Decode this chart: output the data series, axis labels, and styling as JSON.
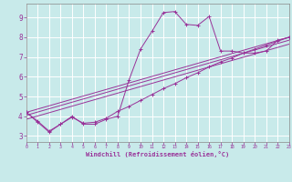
{
  "xlabel": "Windchill (Refroidissement éolien,°C)",
  "bg_color": "#c8eaea",
  "line_color": "#993399",
  "grid_color": "#b0d8d8",
  "xlim": [
    0,
    23
  ],
  "ylim": [
    2.7,
    9.7
  ],
  "xticks": [
    0,
    1,
    2,
    3,
    4,
    5,
    6,
    7,
    8,
    9,
    10,
    11,
    12,
    13,
    14,
    15,
    16,
    17,
    18,
    19,
    20,
    21,
    22,
    23
  ],
  "yticks": [
    3,
    4,
    5,
    6,
    7,
    8,
    9
  ],
  "line_main_x": [
    0,
    1,
    2,
    3,
    4,
    5,
    6,
    7,
    8,
    9,
    10,
    11,
    12,
    13,
    14,
    15,
    16,
    17,
    18,
    19,
    20,
    21,
    22,
    23
  ],
  "line_main_y": [
    4.2,
    3.7,
    3.2,
    3.6,
    4.0,
    3.6,
    3.6,
    3.85,
    4.0,
    5.85,
    7.4,
    8.3,
    9.25,
    9.3,
    8.65,
    8.6,
    9.05,
    7.3,
    7.3,
    7.2,
    7.2,
    7.3,
    7.85,
    8.0
  ],
  "line_smooth_x": [
    0,
    1,
    2,
    3,
    4,
    5,
    6,
    7,
    8,
    9,
    10,
    11,
    12,
    13,
    14,
    15,
    16,
    17,
    18,
    19,
    20,
    21,
    22,
    23
  ],
  "line_smooth_y": [
    4.2,
    3.75,
    3.25,
    3.6,
    3.95,
    3.65,
    3.7,
    3.9,
    4.25,
    4.5,
    4.8,
    5.1,
    5.4,
    5.65,
    5.95,
    6.2,
    6.5,
    6.75,
    6.95,
    7.2,
    7.4,
    7.6,
    7.8,
    8.0
  ],
  "diag_lines": [
    [
      4.2,
      8.0
    ],
    [
      4.05,
      7.85
    ],
    [
      3.85,
      7.65
    ]
  ]
}
